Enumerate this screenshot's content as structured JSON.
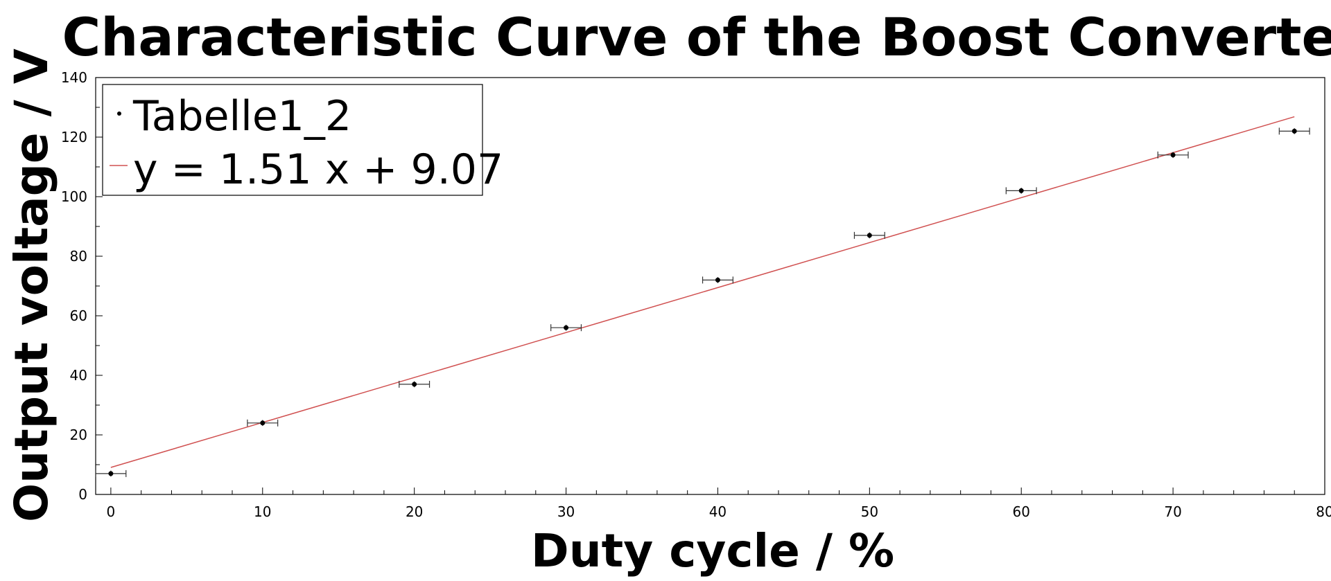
{
  "chart_data": {
    "type": "scatter",
    "title": "Characteristic Curve of the Boost Converter",
    "xlabel": "Duty cycle / %",
    "ylabel": "Output voltage / V",
    "xlim": [
      -1,
      80
    ],
    "ylim": [
      0,
      140
    ],
    "x_ticks": [
      "0",
      "10",
      "20",
      "30",
      "40",
      "50",
      "60",
      "70",
      "80"
    ],
    "y_ticks": [
      "0",
      "20",
      "40",
      "60",
      "80",
      "100",
      "120",
      "140"
    ],
    "grid": false,
    "legend_position": "top-left",
    "series": [
      {
        "name": "Tabelle1_2",
        "type": "scatter",
        "color": "#000000",
        "x": [
          0,
          10,
          20,
          30,
          40,
          50,
          60,
          70,
          78
        ],
        "y": [
          7,
          24,
          37,
          56,
          72,
          87,
          102,
          114,
          122
        ],
        "x_error": 1,
        "y_error": 1
      },
      {
        "name": "y = 1.51 x + 9.07",
        "type": "line",
        "color": "#d05050",
        "slope": 1.51,
        "intercept": 9.07,
        "x_range": [
          0,
          78
        ]
      }
    ]
  }
}
